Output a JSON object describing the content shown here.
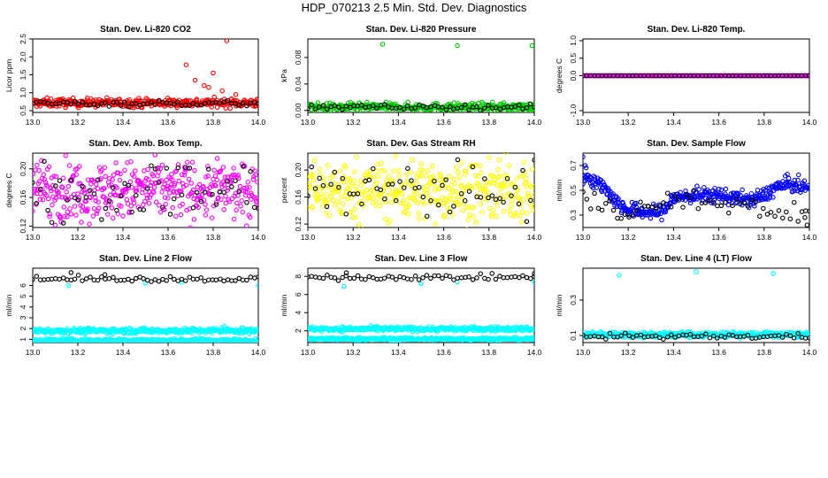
{
  "main_title": "HDP_070213  2.5 Min. Std. Dev. Diagnostics",
  "colors": {
    "red": "#ff0000",
    "green": "#00cc00",
    "magenta": "#ff00ff",
    "yellow": "#ffff00",
    "blue": "#0000ff",
    "cyan": "#00ffff",
    "black": "#000000"
  },
  "chart_data": [
    {
      "type": "scatter",
      "title": "Stan. Dev. Li-820 CO2",
      "ylabel": "Licor ppm",
      "xlim": [
        13.0,
        14.0
      ],
      "ylim": [
        0.45,
        2.5
      ],
      "xticks": [
        "13.0",
        "13.2",
        "13.4",
        "13.6",
        "13.8",
        "14.0"
      ],
      "xtick_values": [
        13.0,
        13.2,
        13.4,
        13.6,
        13.8,
        14.0
      ],
      "yticks": [
        "0.5",
        "1.0",
        "1.5",
        "2.0",
        "2.5"
      ],
      "ytick_values": [
        0.5,
        1.0,
        1.5,
        2.0,
        2.5
      ],
      "series": [
        {
          "name": "main",
          "color": "red",
          "baseline": 0.72,
          "spread": 0.06,
          "n": 360,
          "spikes": [
            {
              "x": 13.68,
              "y": 1.78
            },
            {
              "x": 13.72,
              "y": 1.35
            },
            {
              "x": 13.76,
              "y": 1.2
            },
            {
              "x": 13.78,
              "y": 1.15
            },
            {
              "x": 13.8,
              "y": 1.55
            },
            {
              "x": 13.86,
              "y": 2.45
            },
            {
              "x": 13.84,
              "y": 1.05
            },
            {
              "x": 13.9,
              "y": 0.95
            }
          ]
        },
        {
          "name": "secondary",
          "color": "black",
          "baseline": 0.7,
          "spread": 0.04,
          "n": 60,
          "spikes": []
        }
      ]
    },
    {
      "type": "scatter",
      "title": "Stan. Dev. Li-820 Pressure",
      "ylabel": "kPa",
      "xlim": [
        13.0,
        14.0
      ],
      "ylim": [
        -0.003,
        0.108
      ],
      "xticks": [
        "13.0",
        "13.2",
        "13.4",
        "13.6",
        "13.8",
        "14.0"
      ],
      "xtick_values": [
        13.0,
        13.2,
        13.4,
        13.6,
        13.8,
        14.0
      ],
      "yticks": [
        "0.00",
        "0.04",
        "0.08"
      ],
      "ytick_values": [
        0.0,
        0.04,
        0.08
      ],
      "series": [
        {
          "name": "main",
          "color": "green",
          "baseline": 0.005,
          "spread": 0.003,
          "n": 360,
          "spikes": [
            {
              "x": 13.33,
              "y": 0.1
            },
            {
              "x": 13.66,
              "y": 0.098
            },
            {
              "x": 13.99,
              "y": 0.098
            }
          ]
        },
        {
          "name": "secondary",
          "color": "black",
          "baseline": 0.005,
          "spread": 0.002,
          "n": 60,
          "spikes": []
        }
      ]
    },
    {
      "type": "scatter",
      "title": "Stan. Dev. Li-820 Temp.",
      "ylabel": "degrees C",
      "xlim": [
        13.0,
        14.0
      ],
      "ylim": [
        -1.05,
        1.05
      ],
      "xticks": [
        "13.0",
        "13.2",
        "13.4",
        "13.6",
        "13.8",
        "14.0"
      ],
      "xtick_values": [
        13.0,
        13.2,
        13.4,
        13.6,
        13.8,
        14.0
      ],
      "yticks": [
        "-1.0",
        "0.0",
        "0.5",
        "1.0"
      ],
      "ytick_values": [
        -1.0,
        0.0,
        0.5,
        1.0
      ],
      "series": [
        {
          "name": "main",
          "color": "magenta",
          "baseline": 0.0,
          "spread": 0.0,
          "n": 360,
          "spikes": []
        },
        {
          "name": "secondary",
          "color": "black",
          "baseline": 0.0,
          "spread": 0.0,
          "n": 60,
          "spikes": []
        }
      ]
    },
    {
      "type": "scatter",
      "title": "Stan. Dev. Amb. Box Temp.",
      "ylabel": "degrees C",
      "xlim": [
        13.0,
        14.0
      ],
      "ylim": [
        0.118,
        0.222
      ],
      "xticks": [
        "13.0",
        "13.2",
        "13.4",
        "13.6",
        "13.8",
        "14.0"
      ],
      "xtick_values": [
        13.0,
        13.2,
        13.4,
        13.6,
        13.8,
        14.0
      ],
      "yticks": [
        "0.12",
        "0.16",
        "0.20"
      ],
      "ytick_values": [
        0.12,
        0.16,
        0.2
      ],
      "series": [
        {
          "name": "main",
          "color": "magenta",
          "baseline": 0.17,
          "spread": 0.02,
          "n": 420,
          "spikes": []
        },
        {
          "name": "secondary",
          "color": "black",
          "baseline": 0.17,
          "spread": 0.02,
          "n": 60,
          "spikes": []
        }
      ]
    },
    {
      "type": "scatter",
      "title": "Stan. Dev. Gas Stream RH",
      "ylabel": "percent",
      "xlim": [
        13.0,
        14.0
      ],
      "ylim": [
        0.115,
        0.225
      ],
      "xticks": [
        "13.0",
        "13.2",
        "13.4",
        "13.6",
        "13.8",
        "14.0"
      ],
      "xtick_values": [
        13.0,
        13.2,
        13.4,
        13.6,
        13.8,
        14.0
      ],
      "yticks": [
        "0.12",
        "0.16",
        "0.20"
      ],
      "ytick_values": [
        0.12,
        0.16,
        0.2
      ],
      "series": [
        {
          "name": "main",
          "color": "yellow",
          "baseline": 0.17,
          "spread": 0.022,
          "n": 420,
          "spikes": []
        },
        {
          "name": "secondary",
          "color": "black",
          "baseline": 0.17,
          "spread": 0.022,
          "n": 60,
          "spikes": []
        }
      ]
    },
    {
      "type": "scatter",
      "title": "Stan. Dev. Sample Flow",
      "ylabel": "ml/min",
      "xlim": [
        13.0,
        14.0
      ],
      "ylim": [
        0.2,
        0.8
      ],
      "xticks": [
        "13.0",
        "13.2",
        "13.4",
        "13.6",
        "13.8",
        "14.0"
      ],
      "xtick_values": [
        13.0,
        13.2,
        13.4,
        13.6,
        13.8,
        14.0
      ],
      "yticks": [
        "0.3",
        "0.5",
        "0.7"
      ],
      "ytick_values": [
        0.3,
        0.5,
        0.7
      ],
      "series": [
        {
          "name": "main",
          "color": "blue",
          "profile": [
            [
              13.0,
              0.63
            ],
            [
              13.05,
              0.58
            ],
            [
              13.1,
              0.52
            ],
            [
              13.15,
              0.4
            ],
            [
              13.2,
              0.34
            ],
            [
              13.3,
              0.32
            ],
            [
              13.35,
              0.33
            ],
            [
              13.4,
              0.44
            ],
            [
              13.5,
              0.46
            ],
            [
              13.6,
              0.46
            ],
            [
              13.7,
              0.43
            ],
            [
              13.75,
              0.42
            ],
            [
              13.8,
              0.46
            ],
            [
              13.85,
              0.52
            ],
            [
              13.9,
              0.55
            ],
            [
              14.0,
              0.52
            ]
          ],
          "spread": 0.03,
          "n": 420,
          "spikes": [
            {
              "x": 13.0,
              "y": 0.77
            },
            {
              "x": 13.01,
              "y": 0.7
            }
          ]
        },
        {
          "name": "secondary",
          "color": "black",
          "profile": [
            [
              13.0,
              0.42
            ],
            [
              13.1,
              0.38
            ],
            [
              13.2,
              0.32
            ],
            [
              13.4,
              0.42
            ],
            [
              13.6,
              0.4
            ],
            [
              13.8,
              0.35
            ],
            [
              14.0,
              0.3
            ]
          ],
          "spread": 0.04,
          "n": 60,
          "spikes": [
            {
              "x": 13.99,
              "y": 0.22
            },
            {
              "x": 13.98,
              "y": 0.28
            }
          ]
        }
      ]
    },
    {
      "type": "scatter",
      "title": "Stan. Dev. Line 2 Flow",
      "ylabel": "ml/min",
      "xlim": [
        13.0,
        14.0
      ],
      "ylim": [
        0.7,
        7.6
      ],
      "xticks": [
        "13.0",
        "13.2",
        "13.4",
        "13.6",
        "13.8",
        "14.0"
      ],
      "xtick_values": [
        13.0,
        13.2,
        13.4,
        13.6,
        13.8,
        14.0
      ],
      "yticks": [
        "1",
        "2",
        "3",
        "4",
        "5",
        "6"
      ],
      "ytick_values": [
        1,
        2,
        3,
        4,
        5,
        6
      ],
      "series": [
        {
          "name": "cyan-high",
          "color": "cyan",
          "baseline": 1.8,
          "spread": 0.12,
          "n": 360,
          "spikes": [
            {
              "x": 13.85,
              "y": 2.2
            },
            {
              "x": 13.84,
              "y": 2.1
            }
          ]
        },
        {
          "name": "cyan-low",
          "color": "cyan",
          "baseline": 0.9,
          "spread": 0.08,
          "n": 360,
          "spikes": []
        },
        {
          "name": "cyan-top",
          "color": "cyan",
          "baseline": 6.3,
          "spread": 0.0,
          "n": 0,
          "spikes": [
            {
              "x": 13.16,
              "y": 6.0
            },
            {
              "x": 13.5,
              "y": 6.2
            },
            {
              "x": 13.66,
              "y": 6.3
            },
            {
              "x": 14.0,
              "y": 6.0
            }
          ]
        },
        {
          "name": "secondary",
          "color": "black",
          "baseline": 6.6,
          "spread": 0.12,
          "n": 60,
          "spikes": [
            {
              "x": 13.17,
              "y": 7.2
            },
            {
              "x": 13.32,
              "y": 7.0
            }
          ]
        }
      ]
    },
    {
      "type": "scatter",
      "title": "Stan. Dev. Line 3 Flow",
      "ylabel": "ml/min",
      "xlim": [
        13.0,
        14.0
      ],
      "ylim": [
        0.7,
        8.9
      ],
      "xticks": [
        "13.0",
        "13.2",
        "13.4",
        "13.6",
        "13.8",
        "14.0"
      ],
      "xtick_values": [
        13.0,
        13.2,
        13.4,
        13.6,
        13.8,
        14.0
      ],
      "yticks": [
        "2",
        "4",
        "6",
        "8"
      ],
      "ytick_values": [
        2,
        4,
        6,
        8
      ],
      "series": [
        {
          "name": "cyan-high",
          "color": "cyan",
          "baseline": 2.2,
          "spread": 0.12,
          "n": 360,
          "spikes": []
        },
        {
          "name": "cyan-low",
          "color": "cyan",
          "baseline": 1.1,
          "spread": 0.08,
          "n": 360,
          "spikes": []
        },
        {
          "name": "cyan-top",
          "color": "cyan",
          "baseline": 7.5,
          "spread": 0.0,
          "n": 0,
          "spikes": [
            {
              "x": 13.16,
              "y": 6.9
            },
            {
              "x": 13.5,
              "y": 7.2
            },
            {
              "x": 13.66,
              "y": 7.4
            },
            {
              "x": 14.0,
              "y": 7.4
            }
          ]
        },
        {
          "name": "secondary",
          "color": "black",
          "baseline": 7.9,
          "spread": 0.15,
          "n": 60,
          "spikes": [
            {
              "x": 13.17,
              "y": 8.4
            },
            {
              "x": 14.0,
              "y": 8.3
            }
          ]
        }
      ]
    },
    {
      "type": "scatter",
      "title": "Stan. Dev. Line 4 (LT) Flow",
      "ylabel": "ml/min",
      "xlim": [
        13.0,
        14.0
      ],
      "ylim": [
        0.06,
        0.48
      ],
      "xticks": [
        "13.0",
        "13.2",
        "13.4",
        "13.6",
        "13.8",
        "14.0"
      ],
      "xtick_values": [
        13.0,
        13.2,
        13.4,
        13.6,
        13.8,
        14.0
      ],
      "yticks": [
        "0.1",
        "0.3"
      ],
      "ytick_values": [
        0.1,
        0.3
      ],
      "series": [
        {
          "name": "main",
          "color": "cyan",
          "baseline": 0.105,
          "spread": 0.008,
          "n": 420,
          "spikes": [
            {
              "x": 13.16,
              "y": 0.44
            },
            {
              "x": 13.5,
              "y": 0.46
            },
            {
              "x": 13.84,
              "y": 0.45
            }
          ]
        },
        {
          "name": "secondary",
          "color": "black",
          "baseline": 0.095,
          "spread": 0.007,
          "n": 60,
          "spikes": []
        }
      ]
    }
  ]
}
